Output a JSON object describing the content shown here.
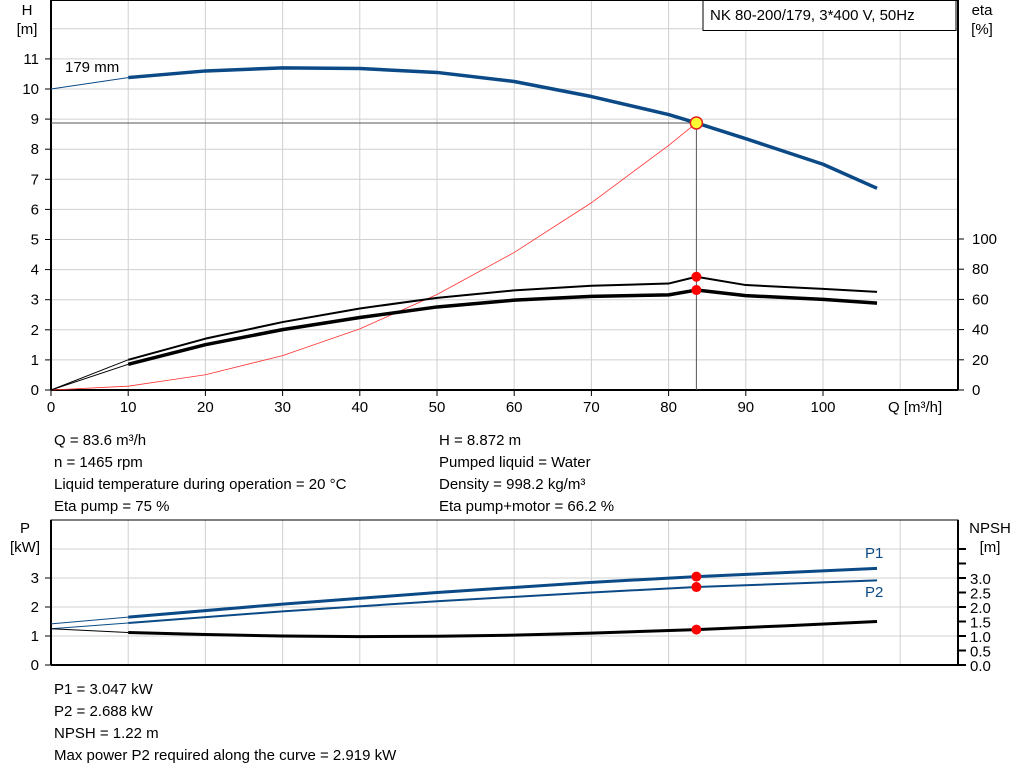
{
  "chart_data": [
    {
      "type": "line",
      "title": "NK 80-200/179, 3*400 V, 50Hz",
      "ylabel": "H",
      "yunit": "[m]",
      "y2label": "eta",
      "y2unit": "[%]",
      "xlabel": "Q [m³/h]",
      "xlim": [
        0,
        117
      ],
      "ylim": [
        0,
        13
      ],
      "y2lim": [
        0,
        100
      ],
      "grid": true,
      "xticks": [
        0,
        10,
        20,
        30,
        40,
        50,
        60,
        70,
        80,
        90,
        100
      ],
      "yticks": [
        0,
        1,
        2,
        3,
        4,
        5,
        6,
        7,
        8,
        9,
        10,
        11
      ],
      "y2ticks": [
        0,
        20,
        40,
        60,
        80,
        100
      ],
      "curve_label": "179 mm",
      "series": [
        {
          "id": "head",
          "color": "#0b4a86",
          "x": [
            0,
            10,
            20,
            30,
            40,
            50,
            60,
            70,
            80,
            83.6,
            90,
            100,
            107
          ],
          "y": [
            10.0,
            10.38,
            10.6,
            10.7,
            10.68,
            10.55,
            10.25,
            9.75,
            9.15,
            8.872,
            8.35,
            7.5,
            6.7
          ]
        },
        {
          "id": "eta_pump",
          "axis": "y2",
          "color": "#000000",
          "x": [
            0,
            10,
            20,
            30,
            40,
            50,
            60,
            70,
            80,
            83.6,
            90,
            100,
            107
          ],
          "y": [
            0,
            20,
            34,
            45,
            54,
            61,
            66,
            69,
            70.5,
            75,
            69.5,
            67,
            65
          ]
        },
        {
          "id": "eta_pump_motor",
          "axis": "y2",
          "color": "#000000",
          "x": [
            0,
            10,
            20,
            30,
            40,
            50,
            60,
            70,
            80,
            83.6,
            90,
            100,
            107
          ],
          "y": [
            0,
            17,
            30,
            40,
            48,
            55,
            59.5,
            62,
            63,
            66.2,
            62.5,
            60,
            57.5
          ]
        },
        {
          "id": "system_curve",
          "color": "#ff3030",
          "x": [
            0,
            10,
            20,
            30,
            40,
            50,
            60,
            70,
            80,
            83.6
          ]
        }
      ],
      "duty_point": {
        "Q": 83.6,
        "H": 8.872,
        "eta_pump": 75,
        "eta_pump_motor": 66.2
      }
    },
    {
      "type": "line",
      "ylabel": "P",
      "yunit": "[kW]",
      "y2label": "NPSH",
      "y2unit": "[m]",
      "xlim": [
        0,
        117
      ],
      "ylim": [
        0,
        5
      ],
      "grid": true,
      "yticks": [
        0,
        1,
        2,
        3
      ],
      "y2ticks": [
        "0.0",
        "0.5",
        "1.0",
        "1.5",
        "2.0",
        "2.5",
        "3.0"
      ],
      "series": [
        {
          "name": "P1",
          "color": "#0b4a86",
          "x": [
            0,
            10,
            30,
            50,
            70,
            83.6,
            107
          ],
          "y": [
            1.42,
            1.65,
            2.1,
            2.5,
            2.85,
            3.047,
            3.33
          ]
        },
        {
          "name": "P2",
          "color": "#0b4a86",
          "x": [
            0,
            10,
            30,
            50,
            70,
            83.6,
            107
          ],
          "y": [
            1.25,
            1.45,
            1.85,
            2.2,
            2.5,
            2.688,
            2.92
          ]
        },
        {
          "id": "npsh",
          "color": "#000000",
          "x": [
            0,
            10,
            20,
            30,
            40,
            50,
            60,
            70,
            83.6,
            95,
            107
          ],
          "y": [
            1.25,
            1.12,
            1.05,
            1.0,
            0.98,
            0.99,
            1.03,
            1.1,
            1.22,
            1.35,
            1.5
          ]
        }
      ],
      "duty_point": {
        "Q": 83.6,
        "P1": 3.047,
        "P2": 2.688,
        "NPSH": 1.22
      }
    }
  ],
  "info_top": {
    "left": [
      "Q = 83.6 m³/h",
      "n = 1465 rpm",
      "Liquid temperature during operation = 20 °C",
      "Eta pump = 75 %"
    ],
    "right": [
      "H = 8.872 m",
      "Pumped liquid = Water",
      "Density = 998.2 kg/m³",
      "Eta pump+motor = 66.2 %"
    ]
  },
  "info_bottom": [
    "P1 = 3.047 kW",
    "P2 = 2.688 kW",
    "NPSH = 1.22 m",
    "Max power P2 required along the curve = 2.919 kW"
  ]
}
